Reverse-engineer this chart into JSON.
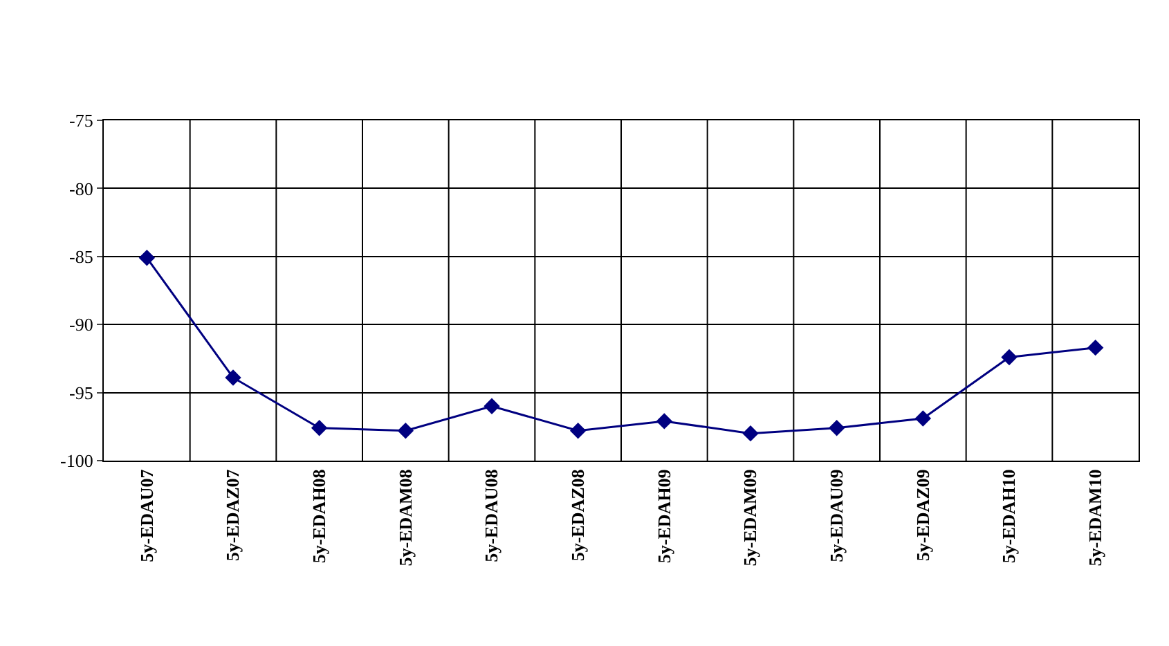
{
  "chart_data": {
    "type": "line",
    "categories": [
      "5y-EDAU07",
      "5y-EDAZ07",
      "5y-EDAH08",
      "5y-EDAM08",
      "5y-EDAU08",
      "5y-EDAZ08",
      "5y-EDAH09",
      "5y-EDAM09",
      "5y-EDAU09",
      "5y-EDAZ09",
      "5y-EDAH10",
      "5y-EDAM10"
    ],
    "series": [
      {
        "color": "#000080",
        "values": [
          -85.1,
          -93.9,
          -97.6,
          -97.8,
          -96.0,
          -97.8,
          -97.1,
          -98.0,
          -97.6,
          -96.9,
          -92.4,
          -91.7
        ]
      }
    ],
    "ylim": [
      -100,
      -75
    ],
    "yticks": [
      -100,
      -95,
      -90,
      -85,
      -80,
      -75
    ],
    "grid": true,
    "marker": "diamond",
    "line_style": "solid"
  }
}
